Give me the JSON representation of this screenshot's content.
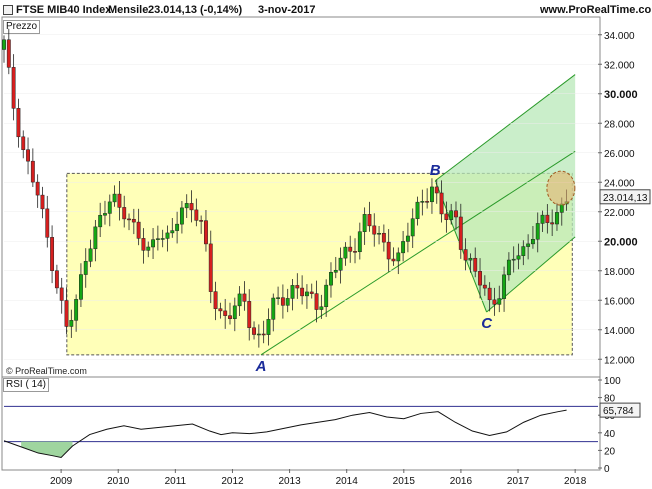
{
  "header": {
    "instrument": "FTSE MIB40 Index",
    "period": "Mensile",
    "last": "23.014,13 (-0,14%)",
    "date": "3-nov-2017",
    "site": "www.ProRealTime.com"
  },
  "price_panel_label": "Prezzo",
  "rsi_panel_label": "RSI ( 14)",
  "copyright": "© ProRealTime.com",
  "colors": {
    "up": "#14a614",
    "down": "#d61f1f",
    "rect_fill": "#ffffb8",
    "channel_fill": "#b8e8b8",
    "channel_line": "#2a9a2a",
    "rsi_band": "#303090",
    "ellipse": "#e8b070"
  },
  "chart_data": [
    {
      "type": "candlestick",
      "title": "FTSE MIB40 Index",
      "ylabel": "Prezzo",
      "ylim": [
        11000,
        35000
      ],
      "y_ticks": [
        "12.000",
        "14.000",
        "16.000",
        "18.000",
        "20.000",
        "22.000",
        "24.000",
        "26.000",
        "28.000",
        "30.000",
        "32.000",
        "34.000"
      ],
      "y_ticks_bold": [
        "20.000",
        "30.000"
      ],
      "x_ticks": [
        "2009",
        "2010",
        "2011",
        "2012",
        "2013",
        "2014",
        "2015",
        "2016",
        "2017",
        "2018"
      ],
      "last_value_label": "23.014,13",
      "last_value": 23014,
      "close_path": [
        [
          2008.0,
          33400
        ],
        [
          2008.15,
          29500
        ],
        [
          2008.35,
          26000
        ],
        [
          2008.6,
          23000
        ],
        [
          2008.85,
          18500
        ],
        [
          2009.1,
          14000
        ],
        [
          2009.25,
          15500
        ],
        [
          2009.45,
          19500
        ],
        [
          2009.7,
          21500
        ],
        [
          2009.9,
          23000
        ],
        [
          2010.1,
          22200
        ],
        [
          2010.3,
          20500
        ],
        [
          2010.5,
          19200
        ],
        [
          2010.7,
          20800
        ],
        [
          2010.9,
          19800
        ],
        [
          2011.1,
          22300
        ],
        [
          2011.3,
          22500
        ],
        [
          2011.5,
          20500
        ],
        [
          2011.6,
          17000
        ],
        [
          2011.75,
          15200
        ],
        [
          2011.9,
          15000
        ],
        [
          2012.05,
          15500
        ],
        [
          2012.2,
          16000
        ],
        [
          2012.35,
          13800
        ],
        [
          2012.5,
          13500
        ],
        [
          2012.7,
          15500
        ],
        [
          2012.9,
          16200
        ],
        [
          2013.1,
          17000
        ],
        [
          2013.3,
          16200
        ],
        [
          2013.5,
          15600
        ],
        [
          2013.7,
          17500
        ],
        [
          2013.9,
          18800
        ],
        [
          2014.1,
          19500
        ],
        [
          2014.3,
          21500
        ],
        [
          2014.5,
          20500
        ],
        [
          2014.7,
          19500
        ],
        [
          2014.9,
          18800
        ],
        [
          2015.1,
          20800
        ],
        [
          2015.3,
          23000
        ],
        [
          2015.5,
          23500
        ],
        [
          2015.7,
          21500
        ],
        [
          2015.9,
          22000
        ],
        [
          2016.05,
          19000
        ],
        [
          2016.2,
          18000
        ],
        [
          2016.4,
          17000
        ],
        [
          2016.5,
          15900
        ],
        [
          2016.7,
          16500
        ],
        [
          2016.9,
          19000
        ],
        [
          2017.1,
          19500
        ],
        [
          2017.3,
          20800
        ],
        [
          2017.5,
          21300
        ],
        [
          2017.7,
          22000
        ],
        [
          2017.85,
          23014
        ]
      ],
      "annotations": [
        {
          "label": "A",
          "x": 2012.5,
          "y": 12300
        },
        {
          "label": "B",
          "x": 2015.55,
          "y": 24100
        },
        {
          "label": "C",
          "x": 2016.45,
          "y": 15200
        }
      ],
      "rectangle": {
        "x": [
          2009.1,
          2017.95
        ],
        "y": [
          12300,
          24600
        ]
      },
      "channel": {
        "from": [
          2012.5,
          12300
        ],
        "to": [
          2018.0,
          26100
        ],
        "upper_from": [
          2015.55,
          24100
        ],
        "upper_to": [
          2018.0,
          31300
        ],
        "lower_from": [
          2016.45,
          15200
        ],
        "lower_to": [
          2018.0,
          20300
        ]
      }
    },
    {
      "type": "line",
      "title": "RSI ( 14)",
      "ylim": [
        0,
        100
      ],
      "y_ticks": [
        "100",
        "80",
        "60",
        "40",
        "20",
        "0"
      ],
      "bands": [
        70,
        30
      ],
      "last_value_label": "65,784",
      "last_value": 65.784,
      "x": [
        2008.0,
        2008.3,
        2008.6,
        2008.85,
        2009.0,
        2009.2,
        2009.5,
        2009.8,
        2010.1,
        2010.4,
        2010.7,
        2011.0,
        2011.3,
        2011.6,
        2011.8,
        2012.0,
        2012.3,
        2012.6,
        2012.9,
        2013.2,
        2013.5,
        2013.8,
        2014.1,
        2014.4,
        2014.7,
        2015.0,
        2015.3,
        2015.6,
        2015.9,
        2016.2,
        2016.5,
        2016.8,
        2017.1,
        2017.4,
        2017.7,
        2017.85
      ],
      "values": [
        31,
        24,
        17,
        14,
        12,
        25,
        38,
        44,
        48,
        44,
        46,
        48,
        50,
        42,
        38,
        40,
        39,
        41,
        45,
        49,
        52,
        55,
        60,
        63,
        58,
        56,
        62,
        64,
        52,
        42,
        37,
        41,
        52,
        60,
        64,
        65.8
      ]
    }
  ]
}
